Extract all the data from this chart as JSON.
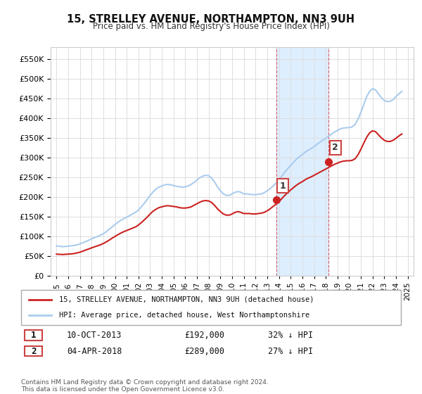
{
  "title": "15, STRELLEY AVENUE, NORTHAMPTON, NN3 9UH",
  "subtitle": "Price paid vs. HM Land Registry's House Price Index (HPI)",
  "title_fontsize": 11,
  "subtitle_fontsize": 9,
  "background_color": "#ffffff",
  "plot_bg_color": "#ffffff",
  "grid_color": "#dddddd",
  "hpi_color": "#aaccee",
  "price_color": "#cc2222",
  "sale1_date": "10-OCT-2013",
  "sale1_price": 192000,
  "sale1_label": "32% ↓ HPI",
  "sale2_date": "04-APR-2018",
  "sale2_price": 289000,
  "sale2_label": "27% ↓ HPI",
  "sale1_x": 2013.78,
  "sale2_x": 2018.25,
  "shade_color": "#ddeeff",
  "ylabel_format": "£{0}K",
  "yticks": [
    0,
    50000,
    100000,
    150000,
    200000,
    250000,
    300000,
    350000,
    400000,
    450000,
    500000,
    550000
  ],
  "ylim": [
    0,
    580000
  ],
  "xlim_start": 1994.5,
  "xlim_end": 2025.5,
  "xticks": [
    1995,
    1996,
    1997,
    1998,
    1999,
    2000,
    2001,
    2002,
    2003,
    2004,
    2005,
    2006,
    2007,
    2008,
    2009,
    2010,
    2011,
    2012,
    2013,
    2014,
    2015,
    2016,
    2017,
    2018,
    2019,
    2020,
    2021,
    2022,
    2023,
    2024,
    2025
  ],
  "legend_label1": "15, STRELLEY AVENUE, NORTHAMPTON, NN3 9UH (detached house)",
  "legend_label2": "HPI: Average price, detached house, West Northamptonshire",
  "footer1": "Contains HM Land Registry data © Crown copyright and database right 2024.",
  "footer2": "This data is licensed under the Open Government Licence v3.0.",
  "hpi_data_x": [
    1995.0,
    1995.25,
    1995.5,
    1995.75,
    1996.0,
    1996.25,
    1996.5,
    1996.75,
    1997.0,
    1997.25,
    1997.5,
    1997.75,
    1998.0,
    1998.25,
    1998.5,
    1998.75,
    1999.0,
    1999.25,
    1999.5,
    1999.75,
    2000.0,
    2000.25,
    2000.5,
    2000.75,
    2001.0,
    2001.25,
    2001.5,
    2001.75,
    2002.0,
    2002.25,
    2002.5,
    2002.75,
    2003.0,
    2003.25,
    2003.5,
    2003.75,
    2004.0,
    2004.25,
    2004.5,
    2004.75,
    2005.0,
    2005.25,
    2005.5,
    2005.75,
    2006.0,
    2006.25,
    2006.5,
    2006.75,
    2007.0,
    2007.25,
    2007.5,
    2007.75,
    2008.0,
    2008.25,
    2008.5,
    2008.75,
    2009.0,
    2009.25,
    2009.5,
    2009.75,
    2010.0,
    2010.25,
    2010.5,
    2010.75,
    2011.0,
    2011.25,
    2011.5,
    2011.75,
    2012.0,
    2012.25,
    2012.5,
    2012.75,
    2013.0,
    2013.25,
    2013.5,
    2013.75,
    2014.0,
    2014.25,
    2014.5,
    2014.75,
    2015.0,
    2015.25,
    2015.5,
    2015.75,
    2016.0,
    2016.25,
    2016.5,
    2016.75,
    2017.0,
    2017.25,
    2017.5,
    2017.75,
    2018.0,
    2018.25,
    2018.5,
    2018.75,
    2019.0,
    2019.25,
    2019.5,
    2019.75,
    2020.0,
    2020.25,
    2020.5,
    2020.75,
    2021.0,
    2021.25,
    2021.5,
    2021.75,
    2022.0,
    2022.25,
    2022.5,
    2022.75,
    2023.0,
    2023.25,
    2023.5,
    2023.75,
    2024.0,
    2024.25,
    2024.5
  ],
  "hpi_data_y": [
    76000,
    75000,
    74000,
    74500,
    75000,
    76000,
    77000,
    78500,
    81000,
    84000,
    87000,
    90000,
    94000,
    97000,
    100000,
    103000,
    107000,
    112000,
    118000,
    124000,
    130000,
    136000,
    141000,
    145000,
    149000,
    153000,
    157000,
    161000,
    167000,
    175000,
    184000,
    194000,
    204000,
    213000,
    220000,
    225000,
    228000,
    231000,
    232000,
    231000,
    229000,
    227000,
    226000,
    225000,
    226000,
    228000,
    232000,
    237000,
    243000,
    249000,
    253000,
    255000,
    254000,
    248000,
    238000,
    226000,
    216000,
    208000,
    204000,
    204000,
    208000,
    212000,
    214000,
    212000,
    208000,
    208000,
    207000,
    206000,
    206000,
    207000,
    208000,
    211000,
    216000,
    221000,
    228000,
    235000,
    243000,
    253000,
    263000,
    272000,
    280000,
    288000,
    296000,
    302000,
    308000,
    314000,
    319000,
    323000,
    328000,
    334000,
    339000,
    344000,
    349000,
    354000,
    360000,
    365000,
    369000,
    373000,
    375000,
    376000,
    376000,
    378000,
    384000,
    397000,
    415000,
    435000,
    455000,
    468000,
    475000,
    472000,
    462000,
    452000,
    445000,
    442000,
    443000,
    447000,
    455000,
    462000,
    468000
  ],
  "price_data_x": [
    1995.0,
    1995.25,
    1995.5,
    1995.75,
    1996.0,
    1996.25,
    1996.5,
    1996.75,
    1997.0,
    1997.25,
    1997.5,
    1997.75,
    1998.0,
    1998.25,
    1998.5,
    1998.75,
    1999.0,
    1999.25,
    1999.5,
    1999.75,
    2000.0,
    2000.25,
    2000.5,
    2000.75,
    2001.0,
    2001.25,
    2001.5,
    2001.75,
    2002.0,
    2002.25,
    2002.5,
    2002.75,
    2003.0,
    2003.25,
    2003.5,
    2003.75,
    2004.0,
    2004.25,
    2004.5,
    2004.75,
    2005.0,
    2005.25,
    2005.5,
    2005.75,
    2006.0,
    2006.25,
    2006.5,
    2006.75,
    2007.0,
    2007.25,
    2007.5,
    2007.75,
    2008.0,
    2008.25,
    2008.5,
    2008.75,
    2009.0,
    2009.25,
    2009.5,
    2009.75,
    2010.0,
    2010.25,
    2010.5,
    2010.75,
    2011.0,
    2011.25,
    2011.5,
    2011.75,
    2012.0,
    2012.25,
    2012.5,
    2012.75,
    2013.0,
    2013.25,
    2013.5,
    2013.75,
    2014.0,
    2014.25,
    2014.5,
    2014.75,
    2015.0,
    2015.25,
    2015.5,
    2015.75,
    2016.0,
    2016.25,
    2016.5,
    2016.75,
    2017.0,
    2017.25,
    2017.5,
    2017.75,
    2018.0,
    2018.25,
    2018.5,
    2018.75,
    2019.0,
    2019.25,
    2019.5,
    2019.75,
    2020.0,
    2020.25,
    2020.5,
    2020.75,
    2021.0,
    2021.25,
    2021.5,
    2021.75,
    2022.0,
    2022.25,
    2022.5,
    2022.75,
    2023.0,
    2023.25,
    2023.5,
    2023.75,
    2024.0,
    2024.25,
    2024.5
  ],
  "price_data_y": [
    55000,
    54500,
    54000,
    54500,
    55000,
    55500,
    56500,
    58000,
    60000,
    62500,
    65500,
    68000,
    71000,
    73500,
    76000,
    78500,
    82000,
    86000,
    90500,
    95500,
    100000,
    104500,
    108500,
    112000,
    115000,
    118000,
    121000,
    124000,
    129000,
    135000,
    142000,
    149000,
    157000,
    164000,
    169000,
    173000,
    175000,
    177000,
    178000,
    177000,
    176000,
    175000,
    173000,
    172000,
    172000,
    173000,
    175000,
    179000,
    183000,
    187000,
    190000,
    191000,
    190000,
    186000,
    179000,
    170000,
    163000,
    157000,
    154000,
    154000,
    157000,
    161000,
    163000,
    161000,
    158000,
    158000,
    158000,
    157000,
    157000,
    158000,
    159000,
    161000,
    165000,
    170000,
    176000,
    182000,
    188000,
    196000,
    204000,
    211000,
    218000,
    224000,
    230000,
    235000,
    239000,
    244000,
    248000,
    251000,
    255000,
    259000,
    263000,
    267000,
    271000,
    275000,
    279000,
    283000,
    286000,
    289000,
    291000,
    292000,
    292000,
    293000,
    297000,
    307000,
    321000,
    337000,
    352000,
    363000,
    368000,
    366000,
    358000,
    350000,
    344000,
    341000,
    341000,
    344000,
    349000,
    355000,
    360000
  ]
}
